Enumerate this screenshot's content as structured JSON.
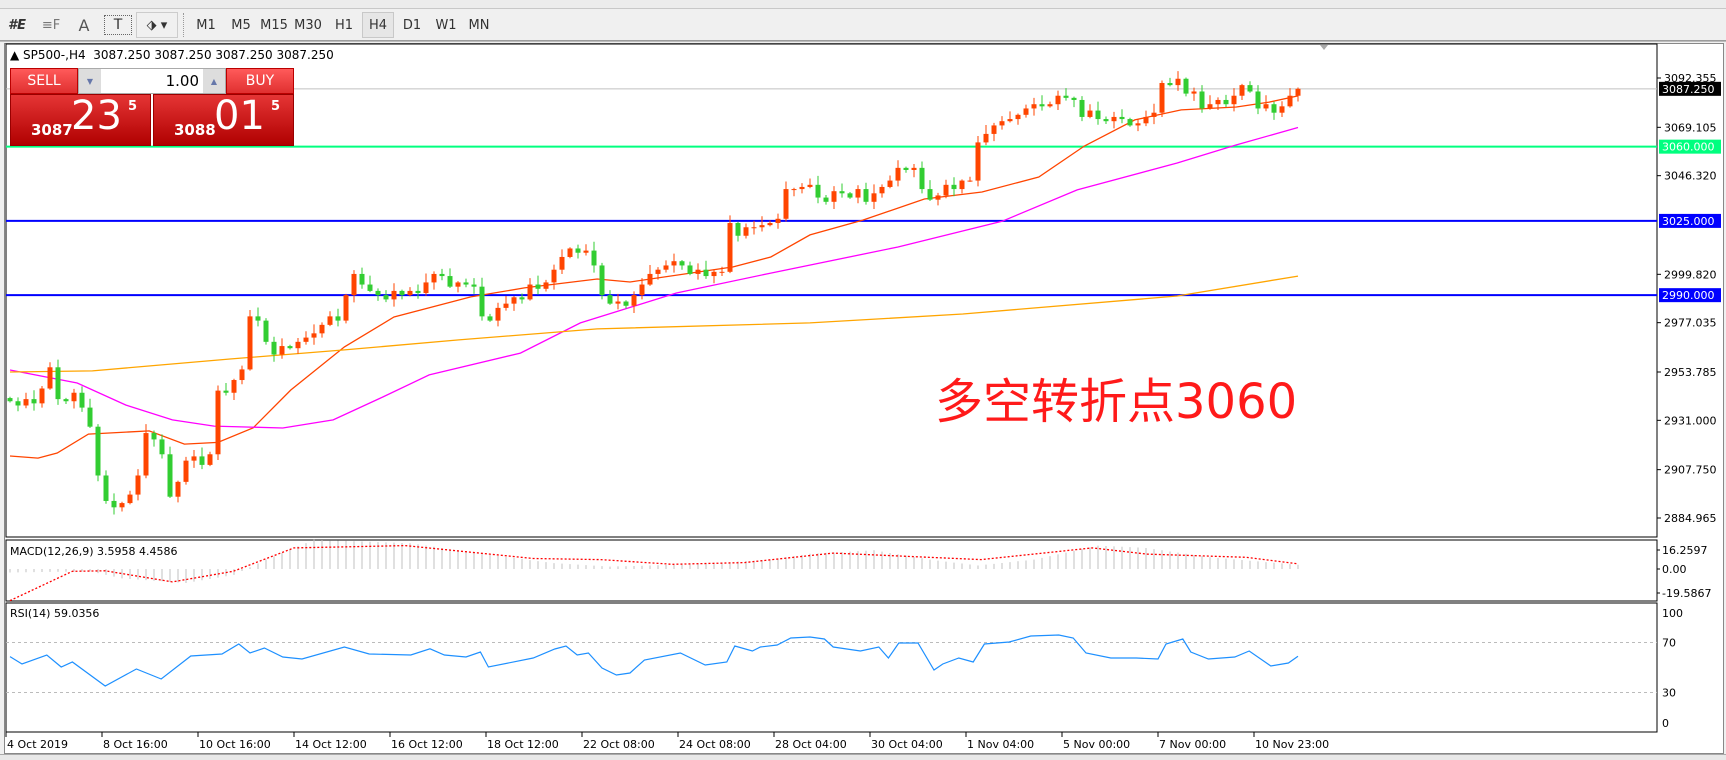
{
  "toolbar": {
    "timeframes": [
      "M1",
      "M5",
      "M15",
      "M30",
      "H1",
      "H4",
      "D1",
      "W1",
      "MN"
    ],
    "active_timeframe": "H4",
    "text_tool_label": "A",
    "textlabel_tool_label": "T"
  },
  "chart_header": {
    "symbol_period": "SP500-,H4",
    "ohlc": "3087.250 3087.250 3087.250 3087.250"
  },
  "trade_panel": {
    "sell_label": "SELL",
    "buy_label": "BUY",
    "lot": "1.00",
    "sell_price": {
      "prefix": "3087",
      "big": "23",
      "sup": "5"
    },
    "buy_price": {
      "prefix": "3088",
      "big": "01",
      "sup": "5"
    }
  },
  "annotation": "多空转折点3060",
  "colors": {
    "bull": "#ff4500",
    "bear": "#32cd32",
    "ma_fast": "#ff4500",
    "ma_mid": "#ff00ff",
    "ma_slow": "#ffa500",
    "level_3060": "#00ff7f",
    "level_blue": "#0000ff",
    "rsi": "#1e90ff",
    "macd_signal": "#ff0000",
    "macd_hist": "#c0c0c0"
  },
  "chart_data": [
    {
      "type": "candlestick",
      "title": "SP500-,H4",
      "ylim": [
        2884.965,
        3092.355
      ],
      "y_ticks": [
        "3092.355",
        "3069.105",
        "3046.320",
        "2999.820",
        "2977.035",
        "2953.785",
        "2931.000",
        "2907.750",
        "2884.965"
      ],
      "x_ticks": [
        "4 Oct 2019",
        "8 Oct 16:00",
        "10 Oct 16:00",
        "14 Oct 12:00",
        "16 Oct 12:00",
        "18 Oct 12:00",
        "22 Oct 08:00",
        "24 Oct 08:00",
        "28 Oct 04:00",
        "30 Oct 04:00",
        "1 Nov 04:00",
        "5 Nov 00:00",
        "7 Nov 00:00",
        "10 Nov 23:00"
      ],
      "x_tick_every_bars": 12,
      "current_price": "3087.250",
      "levels": [
        {
          "value": "3060.000",
          "color": "#00ff7f"
        },
        {
          "value": "3025.000",
          "color": "#0000ff"
        },
        {
          "value": "2990.000",
          "color": "#0000ff"
        }
      ],
      "closes": [
        2940,
        2938,
        2941,
        2939,
        2946,
        2956,
        2941,
        2940,
        2944,
        2937,
        2928,
        2905,
        2893,
        2890,
        2892,
        2896,
        2905,
        2925,
        2922,
        2915,
        2895,
        2902,
        2912,
        2914,
        2910,
        2915,
        2945,
        2944,
        2950,
        2955,
        2980,
        2978,
        2968,
        2962,
        2966,
        2965,
        2968,
        2970,
        2972,
        2976,
        2980,
        2978,
        2990,
        3000,
        2995,
        2992,
        2990,
        2988,
        2992,
        2990,
        2992,
        2991,
        2996,
        3000,
        2999,
        2994,
        2996,
        2995,
        2994,
        2980,
        2978,
        2984,
        2986,
        2989,
        2988,
        2995,
        2993,
        2996,
        3002,
        3008,
        3012,
        3010,
        3011,
        3004,
        2990,
        2986,
        2987,
        2985,
        2990,
        2995,
        3000,
        3002,
        3004,
        3006,
        3004,
        3000,
        3002,
        2999,
        3001,
        3001,
        3024,
        3018,
        3022,
        3022,
        3023,
        3024,
        3026,
        3040,
        3040,
        3041,
        3042,
        3036,
        3034,
        3039,
        3038,
        3036,
        3040,
        3034,
        3038,
        3041,
        3044,
        3050,
        3049,
        3050,
        3040,
        3035,
        3037,
        3042,
        3040,
        3044,
        3044,
        3062,
        3066,
        3070,
        3072,
        3073,
        3075,
        3078,
        3080,
        3079,
        3080,
        3084,
        3083,
        3082,
        3074,
        3077,
        3073,
        3072,
        3074,
        3073,
        3070,
        3071,
        3074,
        3076,
        3090,
        3089,
        3092,
        3085,
        3086,
        3078,
        3080,
        3082,
        3080,
        3084,
        3089,
        3086,
        3078,
        3080,
        3076,
        3079,
        3084,
        3087.25
      ],
      "moving_averages": [
        {
          "color": "#ff4500",
          "points": [
            [
              0,
              2914.2
            ],
            [
              3.5,
              2913.2
            ],
            [
              5.9,
              2915.6
            ],
            [
              9.8,
              2924.5
            ],
            [
              17.4,
              2926
            ],
            [
              21.8,
              2919.8
            ],
            [
              26,
              2920.6
            ],
            [
              30.4,
              2927.5
            ],
            [
              35.1,
              2945.3
            ],
            [
              41.8,
              2965.6
            ],
            [
              48,
              2979.7
            ],
            [
              57.6,
              2989.2
            ],
            [
              64.3,
              2993.4
            ],
            [
              73.4,
              2997.6
            ],
            [
              77.5,
              2996.2
            ],
            [
              90.4,
              3003.3
            ],
            [
              95.1,
              3008
            ],
            [
              100,
              3018.4
            ],
            [
              106.6,
              3025.4
            ],
            [
              114.3,
              3035.3
            ],
            [
              121.5,
              3038.6
            ],
            [
              128.6,
              3045.7
            ],
            [
              134.3,
              3060.3
            ],
            [
              140.6,
              3072.6
            ],
            [
              146.4,
              3077.3
            ],
            [
              153.3,
              3078.7
            ],
            [
              157.4,
              3081
            ],
            [
              161,
              3083.9
            ]
          ]
        },
        {
          "color": "#ff00ff",
          "points": [
            [
              0,
              2954.7
            ],
            [
              8.4,
              2948.6
            ],
            [
              14.5,
              2938.2
            ],
            [
              20.3,
              2931.2
            ],
            [
              25.5,
              2928.3
            ],
            [
              34.1,
              2927.4
            ],
            [
              40.4,
              2931.2
            ],
            [
              46.6,
              2942
            ],
            [
              52.4,
              2952.4
            ],
            [
              63.8,
              2962.7
            ],
            [
              71.3,
              2976.9
            ],
            [
              83.3,
              2991
            ],
            [
              95.1,
              3000.4
            ],
            [
              111,
              3012.7
            ],
            [
              124,
              3024.8
            ],
            [
              133.4,
              3039.6
            ],
            [
              145.9,
              3052.3
            ],
            [
              153.3,
              3060.8
            ],
            [
              161,
              3069
            ]
          ]
        },
        {
          "color": "#ffa500",
          "points": [
            [
              0,
              2953.8
            ],
            [
              10.3,
              2954.3
            ],
            [
              27.5,
              2959.9
            ],
            [
              41.8,
              2964.2
            ],
            [
              56.1,
              2968.9
            ],
            [
              73.4,
              2974.1
            ],
            [
              100,
              2976.9
            ],
            [
              119.1,
              2981.1
            ],
            [
              145.9,
              2989.6
            ],
            [
              161,
              2999
            ]
          ]
        }
      ]
    },
    {
      "type": "bar",
      "title": "MACD(12,26,9) 3.5958 4.4586",
      "y_ticks": [
        "16.2597",
        "0.00",
        "-19.5867"
      ],
      "histogram_points": [
        [
          0,
          -3
        ],
        [
          10,
          -2
        ],
        [
          14,
          -8
        ],
        [
          22,
          -12
        ],
        [
          28,
          -5
        ],
        [
          32,
          8
        ],
        [
          38,
          25
        ],
        [
          50,
          22
        ],
        [
          60,
          12
        ],
        [
          68,
          5
        ],
        [
          75,
          2
        ],
        [
          85,
          4
        ],
        [
          95,
          8
        ],
        [
          100,
          13
        ],
        [
          108,
          16
        ],
        [
          115,
          8
        ],
        [
          121,
          3
        ],
        [
          128,
          8
        ],
        [
          136,
          20
        ],
        [
          142,
          18
        ],
        [
          150,
          10
        ],
        [
          161,
          3.6
        ]
      ],
      "signal_points": [
        [
          0,
          -27
        ],
        [
          7.8,
          -2
        ],
        [
          11.9,
          -1.5
        ],
        [
          20.3,
          -11
        ],
        [
          27.9,
          -2
        ],
        [
          35.5,
          18
        ],
        [
          49.4,
          20
        ],
        [
          65.4,
          9
        ],
        [
          73.8,
          8
        ],
        [
          82.8,
          4
        ],
        [
          91.8,
          5.5
        ],
        [
          102.9,
          13.6
        ],
        [
          121.4,
          8
        ],
        [
          135.3,
          18
        ],
        [
          142.1,
          12.7
        ],
        [
          154.5,
          10
        ],
        [
          161,
          4.46
        ]
      ]
    },
    {
      "type": "line",
      "title": "RSI(14) 59.0356",
      "ylim": [
        0,
        100
      ],
      "y_ticks": [
        "100",
        "70",
        "30",
        "0"
      ],
      "levels": [
        70,
        30
      ],
      "points": [
        [
          0,
          58.7
        ],
        [
          1.5,
          52.8
        ],
        [
          4.6,
          60
        ],
        [
          6.4,
          50.4
        ],
        [
          7.8,
          54.4
        ],
        [
          11.9,
          35.2
        ],
        [
          15.8,
          48.8
        ],
        [
          18.9,
          40.8
        ],
        [
          22.6,
          59.2
        ],
        [
          26.5,
          60.8
        ],
        [
          28.6,
          68.8
        ],
        [
          30,
          61.6
        ],
        [
          31.8,
          65.6
        ],
        [
          34.1,
          58.4
        ],
        [
          36.5,
          56.8
        ],
        [
          41.8,
          66.4
        ],
        [
          44.9,
          60.8
        ],
        [
          50.1,
          60
        ],
        [
          52.5,
          65
        ],
        [
          54.3,
          60
        ],
        [
          57,
          58.4
        ],
        [
          58.8,
          62.4
        ],
        [
          59.8,
          50.4
        ],
        [
          65.4,
          57.6
        ],
        [
          68.1,
          64.8
        ],
        [
          69.5,
          67.2
        ],
        [
          70.9,
          60
        ],
        [
          72.3,
          61.6
        ],
        [
          74,
          49.6
        ],
        [
          75.8,
          44
        ],
        [
          77.5,
          45.6
        ],
        [
          79.3,
          56
        ],
        [
          83.8,
          61.6
        ],
        [
          86.9,
          52
        ],
        [
          89.6,
          54.4
        ],
        [
          90.6,
          67.2
        ],
        [
          92.8,
          63.2
        ],
        [
          93.8,
          66.4
        ],
        [
          95.9,
          68
        ],
        [
          97.6,
          73.6
        ],
        [
          100,
          74.4
        ],
        [
          101.8,
          72.8
        ],
        [
          102.9,
          66.4
        ],
        [
          106.3,
          63.2
        ],
        [
          108.6,
          66.4
        ],
        [
          109.8,
          57.6
        ],
        [
          111.1,
          69.6
        ],
        [
          113.5,
          69.6
        ],
        [
          115.5,
          48
        ],
        [
          116.6,
          52.8
        ],
        [
          118.6,
          57.6
        ],
        [
          120.4,
          54.4
        ],
        [
          121.8,
          68.8
        ],
        [
          124.9,
          70.4
        ],
        [
          127.6,
          75.2
        ],
        [
          131.1,
          76
        ],
        [
          132.9,
          73.6
        ],
        [
          134.5,
          61.6
        ],
        [
          137.6,
          57.6
        ],
        [
          140.8,
          57.6
        ],
        [
          143.5,
          56.8
        ],
        [
          144.5,
          68.8
        ],
        [
          146.6,
          72.8
        ],
        [
          147.6,
          62.4
        ],
        [
          149.8,
          56.8
        ],
        [
          153.1,
          58.4
        ],
        [
          154.9,
          63.2
        ],
        [
          157.6,
          51.2
        ],
        [
          159.8,
          53.6
        ],
        [
          161,
          59
        ]
      ]
    }
  ]
}
